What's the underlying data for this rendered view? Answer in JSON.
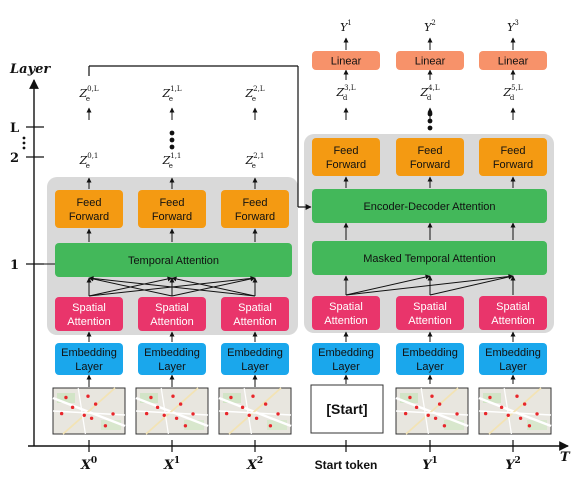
{
  "axis": {
    "layer_label": "Layer",
    "time_label": "T",
    "tick_L": "L",
    "tick_2": "2",
    "tick_1": "1"
  },
  "encoder": {
    "embedding_label": [
      "Embedding",
      "Layer"
    ],
    "spatial_label": [
      "Spatial",
      "Attention"
    ],
    "temporal_label": "Temporal Attention",
    "ff_label": [
      "Feed",
      "Forward"
    ],
    "z1": [
      {
        "base": "Z",
        "sub": "e",
        "sup": "0,1"
      },
      {
        "base": "Z",
        "sub": "e",
        "sup": "1,1"
      },
      {
        "base": "Z",
        "sub": "e",
        "sup": "2,1"
      }
    ],
    "zL": [
      {
        "base": "Z",
        "sub": "e",
        "sup": "0,L"
      },
      {
        "base": "Z",
        "sub": "e",
        "sup": "1,L"
      },
      {
        "base": "Z",
        "sub": "e",
        "sup": "2,L"
      }
    ]
  },
  "decoder": {
    "embedding_label": [
      "Embedding",
      "Layer"
    ],
    "spatial_label": [
      "Spatial",
      "Attention"
    ],
    "masked_label": "Masked Temporal Attention",
    "encdec_label": "Encoder-Decoder Attention",
    "ff_label": [
      "Feed",
      "Forward"
    ],
    "linear_label": "Linear",
    "start_box": "[Start]",
    "zd": [
      {
        "base": "Z",
        "sub": "d",
        "sup": "3,L"
      },
      {
        "base": "Z",
        "sub": "d",
        "sup": "4,L"
      },
      {
        "base": "Z",
        "sub": "d",
        "sup": "5,L"
      }
    ],
    "outputs": [
      {
        "base": "Y",
        "sup": "1"
      },
      {
        "base": "Y",
        "sup": "2"
      },
      {
        "base": "Y",
        "sup": "3"
      }
    ]
  },
  "inputs": [
    {
      "base": "X",
      "sup": "0"
    },
    {
      "base": "X",
      "sup": "1"
    },
    {
      "base": "X",
      "sup": "2"
    },
    {
      "text": "Start token"
    },
    {
      "base": "Y",
      "sup": "1"
    },
    {
      "base": "Y",
      "sup": "2"
    }
  ],
  "colors": {
    "embedding": "#1aa7ec",
    "spatial": "#e9356b",
    "temporal": "#43b85a",
    "feed_forward": "#f49a12",
    "linear": "#f7926a",
    "panel": "#d9d9d9"
  },
  "icons": [
    "map-thumbnail"
  ]
}
